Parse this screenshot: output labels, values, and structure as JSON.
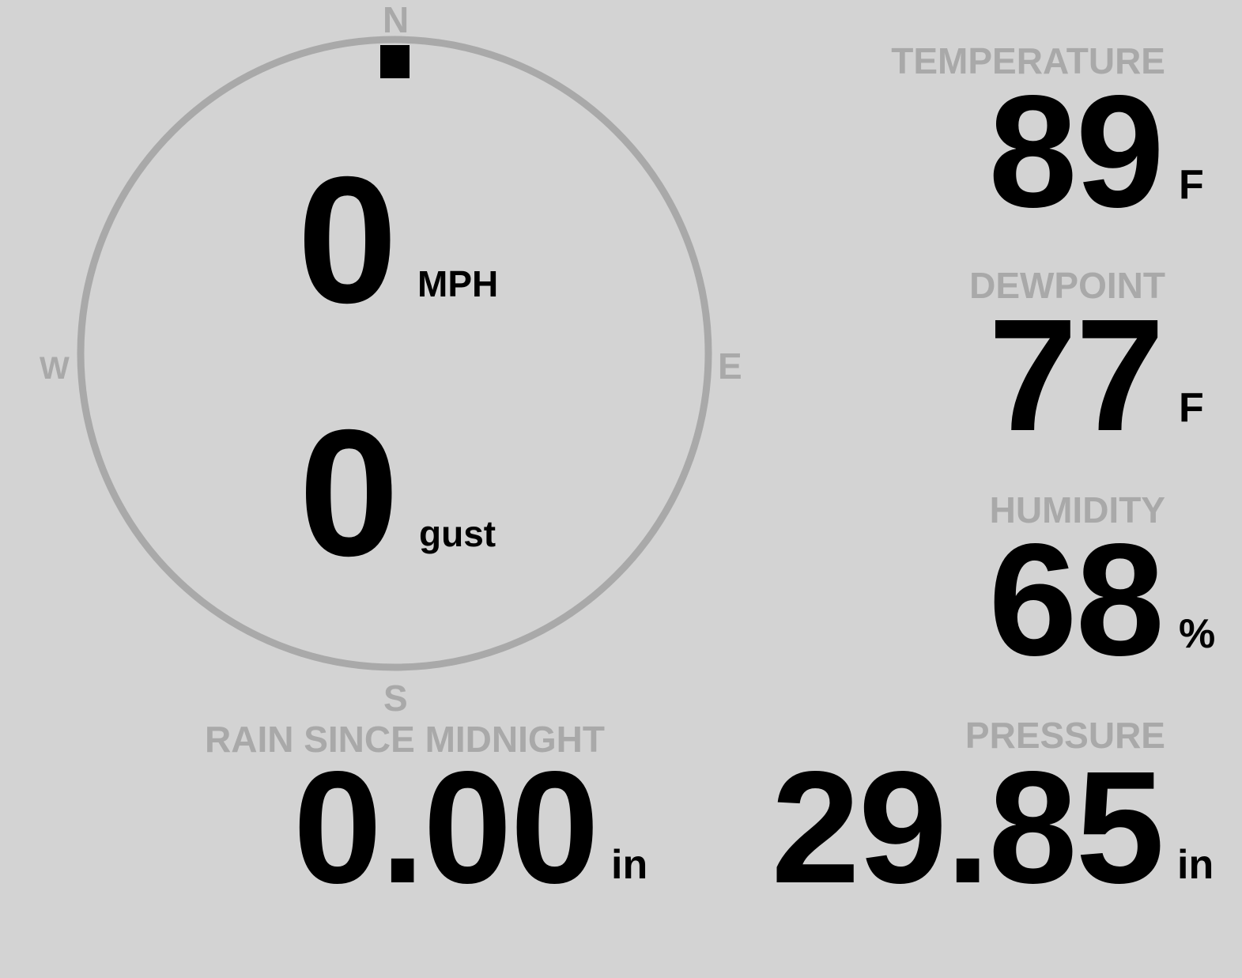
{
  "wind": {
    "speed": "0",
    "speed_unit": "MPH",
    "gust": "0",
    "gust_unit": "gust",
    "direction_deg": 0,
    "compass": {
      "n": "N",
      "e": "E",
      "s": "S",
      "w": "W"
    }
  },
  "temperature": {
    "label": "TEMPERATURE",
    "value": "89",
    "unit": "F"
  },
  "dewpoint": {
    "label": "DEWPOINT",
    "value": "77",
    "unit": "F"
  },
  "humidity": {
    "label": "HUMIDITY",
    "value": "68",
    "unit": "%"
  },
  "rain": {
    "label": "RAIN SINCE MIDNIGHT",
    "value": "0.00",
    "unit": "in"
  },
  "pressure": {
    "label": "PRESSURE",
    "value": "29.85",
    "unit": "in"
  },
  "colors": {
    "background": "#d3d3d3",
    "label": "#a9a9a9",
    "value": "#000000"
  }
}
